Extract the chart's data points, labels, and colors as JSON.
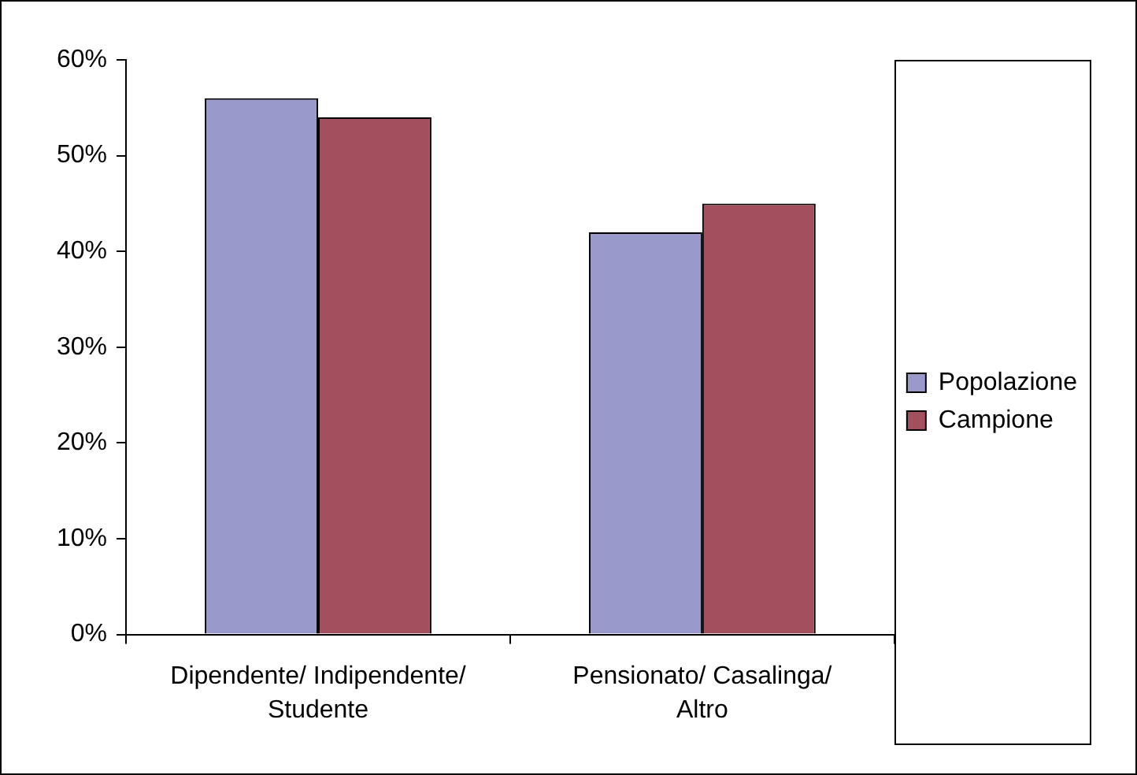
{
  "chart_data": {
    "type": "bar",
    "categories": [
      "Dipendente/ Indipendente/ Studente",
      "Pensionato/ Casalinga/ Altro"
    ],
    "series": [
      {
        "name": "Popolazione",
        "color": "#9999cc",
        "values": [
          56,
          42
        ]
      },
      {
        "name": "Campione",
        "color": "#a24f5e",
        "values": [
          54,
          45
        ]
      }
    ],
    "ylim": [
      0,
      60
    ],
    "yticks": [
      {
        "value": 0,
        "label": "0%"
      },
      {
        "value": 10,
        "label": "10%"
      },
      {
        "value": 20,
        "label": "20%"
      },
      {
        "value": 30,
        "label": "30%"
      },
      {
        "value": 40,
        "label": "40%"
      },
      {
        "value": 50,
        "label": "50%"
      },
      {
        "value": 60,
        "label": "60%"
      }
    ],
    "grid": false,
    "legend": "right"
  }
}
